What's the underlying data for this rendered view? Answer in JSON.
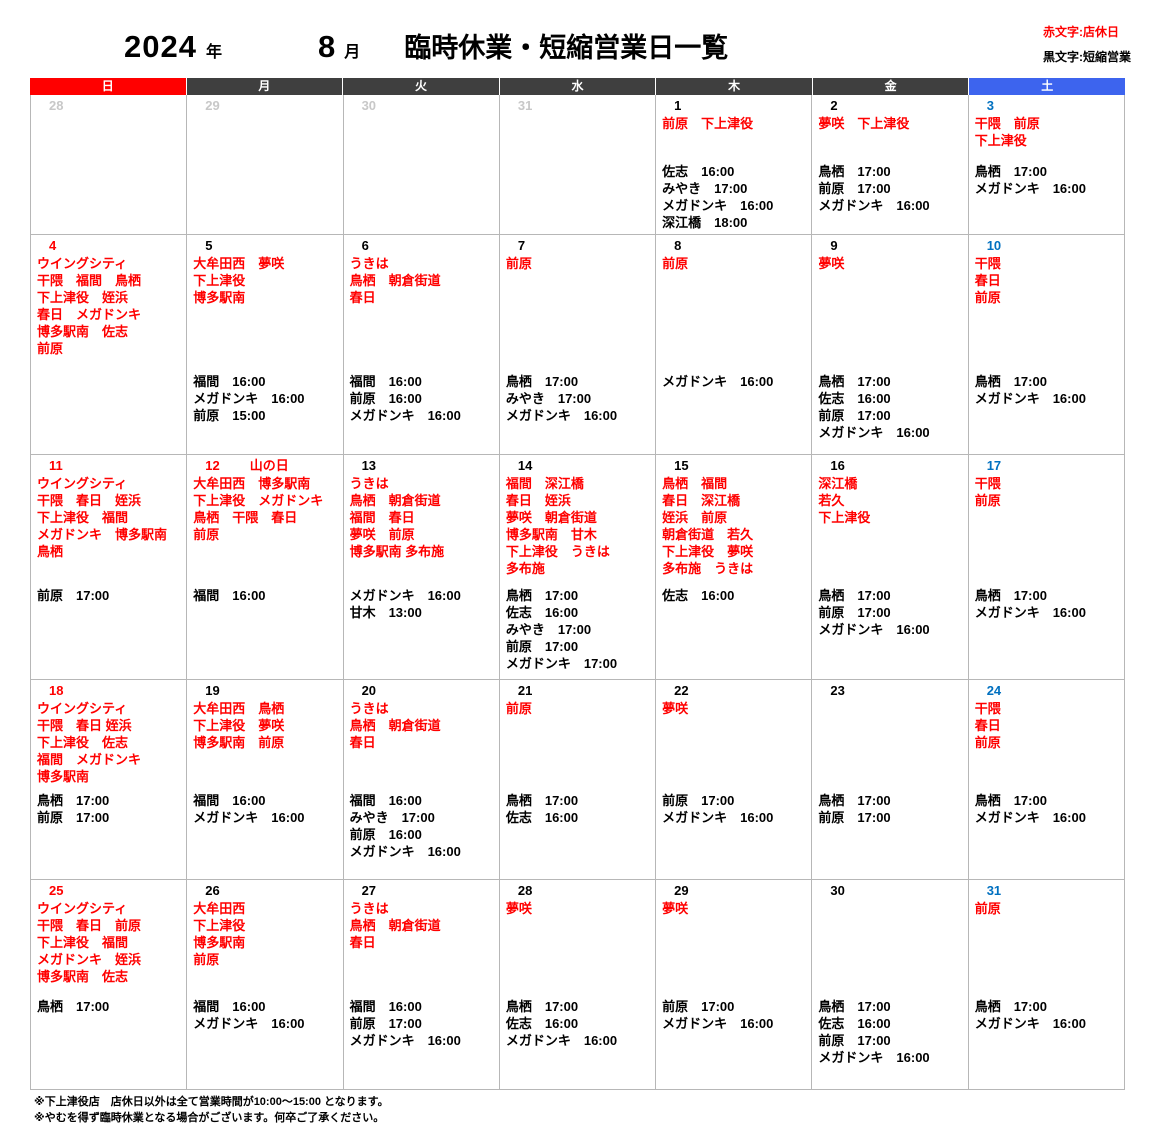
{
  "header": {
    "year": "2024",
    "year_unit": "年",
    "month": "8",
    "month_unit": "月",
    "title": "臨時休業・短縮営業日一覧",
    "legend_red": "赤文字:店休日",
    "legend_black": "黒文字:短縮営業"
  },
  "colors": {
    "closed_red": "#FF0000",
    "sunday_header_bg": "#FF0000",
    "weekday_header_bg": "#3F3F3F",
    "saturday_header_bg": "#3D64EE",
    "sunday_date": "#FF0000",
    "saturday_date": "#0070C0",
    "weekday_date": "#000000",
    "prev_month_date": "#C8C8C8"
  },
  "weekday_headers": [
    {
      "key": "sun",
      "label": "日",
      "bg": "#FF0000"
    },
    {
      "key": "mon",
      "label": "月",
      "bg": "#3F3F3F"
    },
    {
      "key": "tue",
      "label": "火",
      "bg": "#3F3F3F"
    },
    {
      "key": "wed",
      "label": "水",
      "bg": "#3F3F3F"
    },
    {
      "key": "thu",
      "label": "木",
      "bg": "#3F3F3F"
    },
    {
      "key": "fri",
      "label": "金",
      "bg": "#3F3F3F"
    },
    {
      "key": "sat",
      "label": "土",
      "bg": "#3D64EE"
    }
  ],
  "weeks": [
    [
      {
        "day": "28",
        "type": "prev",
        "closed": [],
        "times": []
      },
      {
        "day": "29",
        "type": "prev",
        "closed": [],
        "times": []
      },
      {
        "day": "30",
        "type": "prev",
        "closed": [],
        "times": []
      },
      {
        "day": "31",
        "type": "prev",
        "closed": [],
        "times": []
      },
      {
        "day": "1",
        "type": "wd",
        "closed": [
          "前原　下上津役"
        ],
        "times": [
          "佐志　16:00",
          "みやき　17:00",
          "メガドンキ　16:00",
          "深江橋　18:00"
        ]
      },
      {
        "day": "2",
        "type": "wd",
        "closed": [
          "夢咲　下上津役"
        ],
        "times": [
          "鳥栖　17:00",
          "前原　17:00",
          "メガドンキ　16:00"
        ]
      },
      {
        "day": "3",
        "type": "sat",
        "closed": [
          "干隈　前原",
          "下上津役"
        ],
        "times": [
          "鳥栖　17:00",
          "メガドンキ　16:00"
        ]
      }
    ],
    [
      {
        "day": "4",
        "type": "sun",
        "closed": [
          "ウイングシティ",
          "干隈　福間　鳥栖",
          "下上津役　姪浜",
          "春日　メガドンキ",
          "博多駅南　佐志",
          "前原"
        ],
        "times": []
      },
      {
        "day": "5",
        "type": "wd",
        "closed": [
          "大牟田西　夢咲",
          "下上津役",
          "博多駅南"
        ],
        "times": [
          "福間　16:00",
          "メガドンキ　16:00",
          "前原　15:00"
        ]
      },
      {
        "day": "6",
        "type": "wd",
        "closed": [
          "うきは",
          "鳥栖　朝倉街道",
          "春日"
        ],
        "times": [
          "福間　16:00",
          "前原　16:00",
          "メガドンキ　16:00"
        ]
      },
      {
        "day": "7",
        "type": "wd",
        "closed": [
          "前原"
        ],
        "times": [
          "鳥栖　17:00",
          "みやき　17:00",
          "メガドンキ　16:00"
        ]
      },
      {
        "day": "8",
        "type": "wd",
        "closed": [
          "前原"
        ],
        "times": [
          "メガドンキ　16:00"
        ]
      },
      {
        "day": "9",
        "type": "wd",
        "closed": [
          "夢咲"
        ],
        "times": [
          "鳥栖　17:00",
          "佐志　16:00",
          "前原　17:00",
          "メガドンキ　16:00"
        ]
      },
      {
        "day": "10",
        "type": "sat",
        "closed": [
          "干隈",
          "春日",
          "前原"
        ],
        "times": [
          "鳥栖　17:00",
          "メガドンキ　16:00"
        ]
      }
    ],
    [
      {
        "day": "11",
        "type": "sun",
        "closed": [
          "ウイングシティ",
          "干隈　春日　姪浜",
          "下上津役　福間",
          "メガドンキ　博多駅南",
          "鳥栖"
        ],
        "times": [
          "前原　17:00"
        ]
      },
      {
        "day": "12",
        "type": "sun",
        "holiday_label": "山の日",
        "closed": [
          "大牟田西　博多駅南",
          "下上津役　メガドンキ",
          "鳥栖　干隈　春日",
          "前原"
        ],
        "times": [
          "福間　16:00"
        ]
      },
      {
        "day": "13",
        "type": "wd",
        "closed": [
          "うきは",
          "鳥栖　朝倉街道",
          "福間　春日",
          "夢咲　前原",
          "博多駅南 多布施"
        ],
        "times": [
          "メガドンキ　16:00",
          "甘木　13:00"
        ]
      },
      {
        "day": "14",
        "type": "wd",
        "closed": [
          "福間　深江橋",
          "春日　姪浜",
          "夢咲　朝倉街道",
          "博多駅南　甘木",
          "下上津役　うきは",
          "多布施"
        ],
        "times": [
          "鳥栖　17:00",
          "佐志　16:00",
          "みやき　17:00",
          "前原　17:00",
          "メガドンキ　17:00"
        ]
      },
      {
        "day": "15",
        "type": "wd",
        "closed": [
          "鳥栖　福間",
          "春日　深江橋",
          "姪浜　前原",
          "朝倉街道　若久",
          "下上津役　夢咲",
          "多布施　うきは"
        ],
        "times": [
          "佐志　16:00"
        ]
      },
      {
        "day": "16",
        "type": "wd",
        "closed": [
          "深江橋",
          "若久",
          "下上津役"
        ],
        "times": [
          "鳥栖　17:00",
          "前原　17:00",
          "メガドンキ　16:00"
        ]
      },
      {
        "day": "17",
        "type": "sat",
        "closed": [
          "干隈",
          "前原"
        ],
        "times": [
          "鳥栖　17:00",
          "メガドンキ　16:00"
        ]
      }
    ],
    [
      {
        "day": "18",
        "type": "sun",
        "closed": [
          "ウイングシティ",
          "干隈　春日 姪浜",
          "下上津役　佐志",
          "福間　メガドンキ",
          "博多駅南"
        ],
        "times": [
          "鳥栖　17:00",
          "前原　17:00"
        ]
      },
      {
        "day": "19",
        "type": "wd",
        "closed": [
          "大牟田西　鳥栖",
          "下上津役　夢咲",
          "博多駅南　前原"
        ],
        "times": [
          "福間　16:00",
          "メガドンキ　16:00"
        ]
      },
      {
        "day": "20",
        "type": "wd",
        "closed": [
          "うきは",
          "鳥栖　朝倉街道",
          "春日"
        ],
        "times": [
          "福間　16:00",
          "みやき　17:00",
          "前原　16:00",
          "メガドンキ　16:00"
        ]
      },
      {
        "day": "21",
        "type": "wd",
        "closed": [
          "前原"
        ],
        "times": [
          "鳥栖　17:00",
          "佐志　16:00"
        ]
      },
      {
        "day": "22",
        "type": "wd",
        "closed": [
          "夢咲"
        ],
        "times": [
          "前原　17:00",
          "メガドンキ　16:00"
        ]
      },
      {
        "day": "23",
        "type": "wd",
        "closed": [],
        "times": [
          "鳥栖　17:00",
          "前原　17:00"
        ]
      },
      {
        "day": "24",
        "type": "sat",
        "closed": [
          "干隈",
          "春日",
          "前原"
        ],
        "times": [
          "鳥栖　17:00",
          "メガドンキ　16:00"
        ]
      }
    ],
    [
      {
        "day": "25",
        "type": "sun",
        "closed": [
          "ウイングシティ",
          "干隈　春日　前原",
          "下上津役　福間",
          "メガドンキ　姪浜",
          "博多駅南　佐志"
        ],
        "times": [
          "鳥栖　17:00"
        ]
      },
      {
        "day": "26",
        "type": "wd",
        "closed": [
          "大牟田西",
          "下上津役",
          "博多駅南",
          "前原"
        ],
        "times": [
          "福間　16:00",
          "メガドンキ　16:00"
        ]
      },
      {
        "day": "27",
        "type": "wd",
        "closed": [
          "うきは",
          "鳥栖　朝倉街道",
          "春日"
        ],
        "times": [
          "福間　16:00",
          "前原　17:00",
          "メガドンキ　16:00"
        ]
      },
      {
        "day": "28",
        "type": "wd",
        "closed": [
          "夢咲"
        ],
        "times": [
          "鳥栖　17:00",
          "佐志　16:00",
          "メガドンキ　16:00"
        ]
      },
      {
        "day": "29",
        "type": "wd",
        "closed": [
          "夢咲"
        ],
        "times": [
          "前原　17:00",
          "メガドンキ　16:00"
        ]
      },
      {
        "day": "30",
        "type": "wd",
        "closed": [],
        "times": [
          "鳥栖　17:00",
          "佐志　16:00",
          "前原　17:00",
          "メガドンキ　16:00"
        ]
      },
      {
        "day": "31",
        "type": "sat",
        "closed": [
          "前原"
        ],
        "times": [
          "鳥栖　17:00",
          "メガドンキ　16:00"
        ]
      }
    ]
  ],
  "footnotes": [
    "※下上津役店　店休日以外は全て営業時間が10:00～15:00 となります。",
    "※やむを得ず臨時休業となる場合がございます。何卒ご了承ください。"
  ]
}
